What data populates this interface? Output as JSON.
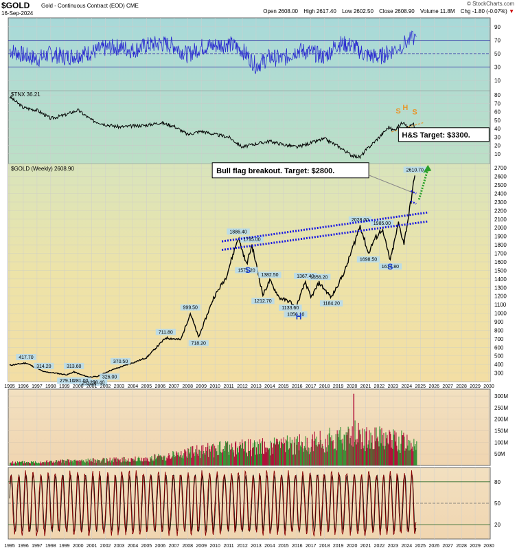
{
  "header": {
    "symbol": "$GOLD",
    "description": "Gold - Continuous Contract (EOD) CME",
    "date": "16-Sep-2024",
    "copyright": "© StockCharts.com",
    "quote": {
      "open_label": "Open",
      "open": "2608.00",
      "high_label": "High",
      "high": "2617.40",
      "low_label": "Low",
      "low": "2602.50",
      "close_label": "Close",
      "close": "2608.90",
      "volume_label": "Volume",
      "volume": "11.8M",
      "chg_label": "Chg",
      "chg": "-1.80 (-0.07%)",
      "chg_arrow": "▼"
    }
  },
  "colors": {
    "rsi_line": "#2a2ad0",
    "price_line": "#000000",
    "tnx_line": "#000000",
    "trend_dots": "#1a1ae0",
    "hs_labels_gold": "#e8952a",
    "hs_labels_price": "#1a3fd0",
    "target_arrow": "#2aa02a",
    "volume_up": "#2f8f2f",
    "volume_down": "#b0103a",
    "stoch_line": "#8b0000",
    "panel_top_bg": "#a8d8d8",
    "panel_bottom_bg": "#f0d8b0"
  },
  "chart_data": [
    {
      "type": "line",
      "panel": "RSI",
      "ylim": [
        0,
        100
      ],
      "yticks": [
        "10",
        "30",
        "50",
        "70",
        "90"
      ],
      "reference_lines": [
        30,
        50,
        70
      ],
      "x": [
        1995,
        1996,
        1997,
        1998,
        1999,
        2000,
        2001,
        2002,
        2003,
        2004,
        2005,
        2006,
        2007,
        2008,
        2009,
        2010,
        2011,
        2012,
        2013,
        2014,
        2015,
        2016,
        2017,
        2018,
        2019,
        2020,
        2021,
        2022,
        2023,
        2024.7
      ],
      "values": [
        55,
        48,
        42,
        50,
        45,
        48,
        52,
        58,
        60,
        55,
        62,
        65,
        62,
        48,
        60,
        62,
        65,
        55,
        32,
        45,
        42,
        55,
        52,
        45,
        65,
        62,
        48,
        45,
        55,
        75
      ]
    },
    {
      "type": "line",
      "panel": "TNX",
      "series_label": "$TNX 36.21",
      "ylim": [
        0,
        85
      ],
      "yticks": [
        "10",
        "20",
        "30",
        "40",
        "50",
        "60",
        "70",
        "80"
      ],
      "x": [
        1995,
        1996,
        1997,
        1998,
        1999,
        2000,
        2001,
        2002,
        2003,
        2004,
        2005,
        2006,
        2007,
        2008,
        2009,
        2010,
        2011,
        2012,
        2013,
        2014,
        2015,
        2016,
        2017,
        2018,
        2019,
        2020,
        2020.6,
        2021,
        2022,
        2022.7,
        2023,
        2023.3,
        2023.8,
        2024,
        2024.5,
        2024.7
      ],
      "values": [
        78,
        65,
        62,
        52,
        56,
        62,
        50,
        45,
        42,
        43,
        44,
        47,
        43,
        33,
        37,
        33,
        30,
        18,
        22,
        25,
        21,
        18,
        23,
        28,
        19,
        8,
        6,
        14,
        30,
        42,
        38,
        41,
        49,
        41,
        45,
        36
      ]
    },
    {
      "type": "line",
      "panel": "Price",
      "series_label": "$GOLD (Weekly) 2608.90",
      "ylim": [
        200,
        2750
      ],
      "yticks": [
        "300",
        "400",
        "500",
        "600",
        "700",
        "800",
        "900",
        "1000",
        "1100",
        "1200",
        "1300",
        "1400",
        "1500",
        "1600",
        "1700",
        "1800",
        "1900",
        "2000",
        "2100",
        "2200",
        "2300",
        "2400",
        "2500",
        "2600",
        "2700"
      ],
      "xticks": [
        "1995",
        "1996",
        "1997",
        "1998",
        "1999",
        "2000",
        "2001",
        "2002",
        "2003",
        "2004",
        "2005",
        "2006",
        "2007",
        "2008",
        "2009",
        "2010",
        "2011",
        "2012",
        "2013",
        "2014",
        "2015",
        "2016",
        "2017",
        "2018",
        "2019",
        "2020",
        "2021",
        "2022",
        "2023",
        "2024",
        "2025",
        "2026",
        "2027",
        "2028",
        "2029",
        "2030"
      ],
      "x": [
        1995,
        1996.2,
        1997.5,
        1998.3,
        1999.2,
        1999.7,
        2000.2,
        2000.8,
        2001.4,
        2002.3,
        2003.1,
        2004,
        2005,
        2006.4,
        2007.5,
        2008.2,
        2008.8,
        2009.9,
        2010.8,
        2011.7,
        2012.3,
        2012.7,
        2013.5,
        2014,
        2014.7,
        2015.5,
        2015.9,
        2016.6,
        2017,
        2017.6,
        2018.5,
        2019.5,
        2020.6,
        2021.2,
        2021.6,
        2022.2,
        2022.8,
        2023.4,
        2023.8,
        2024.1,
        2024.6
      ],
      "values": [
        390,
        417.7,
        314.2,
        300,
        279.1,
        313.6,
        281,
        253.2,
        258.4,
        326,
        370.5,
        420,
        480,
        711.8,
        690,
        999.5,
        718.2,
        1180,
        1420,
        1886.4,
        1571.2,
        1795,
        1212.7,
        1382.5,
        1180,
        1133.6,
        1056.1,
        1367.4,
        1180,
        1356.2,
        1184.2,
        1500,
        2028,
        1698.5,
        1850,
        1985,
        1614.8,
        2050,
        1820,
        2100,
        2610.7
      ],
      "annotations": [
        {
          "text": "417.70",
          "x": 1996.2,
          "y": 417.7
        },
        {
          "text": "314.20",
          "x": 1997.5,
          "y": 314.2
        },
        {
          "text": "279.10",
          "x": 1999.2,
          "y": 279.1
        },
        {
          "text": "313.60",
          "x": 1999.7,
          "y": 313.6
        },
        {
          "text": "281.00",
          "x": 2000.2,
          "y": 281
        },
        {
          "text": "253.20",
          "x": 2000.8,
          "y": 253.2
        },
        {
          "text": "258.40",
          "x": 2001.4,
          "y": 258.4
        },
        {
          "text": "326.00",
          "x": 2002.3,
          "y": 326
        },
        {
          "text": "370.50",
          "x": 2003.1,
          "y": 370.5
        },
        {
          "text": "711.80",
          "x": 2006.4,
          "y": 711.8
        },
        {
          "text": "999.50",
          "x": 2008.2,
          "y": 999.5
        },
        {
          "text": "718.20",
          "x": 2008.8,
          "y": 718.2
        },
        {
          "text": "1886.40",
          "x": 2011.7,
          "y": 1886.4
        },
        {
          "text": "1795.00",
          "x": 2012.7,
          "y": 1795
        },
        {
          "text": "1571.20",
          "x": 2012.3,
          "y": 1571.2
        },
        {
          "text": "1382.50",
          "x": 2014,
          "y": 1382.5
        },
        {
          "text": "1212.70",
          "x": 2013.5,
          "y": 1212.7
        },
        {
          "text": "1367.40",
          "x": 2016.6,
          "y": 1367.4
        },
        {
          "text": "1356.20",
          "x": 2017.6,
          "y": 1356.2
        },
        {
          "text": "1133.60",
          "x": 2015.5,
          "y": 1133.6
        },
        {
          "text": "1056.10",
          "x": 2015.9,
          "y": 1056.1
        },
        {
          "text": "1184.20",
          "x": 2018.5,
          "y": 1184.2
        },
        {
          "text": "2028.00",
          "x": 2020.6,
          "y": 2028
        },
        {
          "text": "1698.50",
          "x": 2021.2,
          "y": 1698.5
        },
        {
          "text": "1985.00",
          "x": 2022.2,
          "y": 1985
        },
        {
          "text": "1614.80",
          "x": 2022.8,
          "y": 1614.8
        },
        {
          "text": "2610.70",
          "x": 2024.6,
          "y": 2610.7
        }
      ],
      "callouts": {
        "flag": "Bull flag breakout.  Target: $2800.",
        "target": "H&S Target: $3300.",
        "s_left": "S",
        "h": "H",
        "s_right": "S",
        "tnx_s_left": "S",
        "tnx_h": "H",
        "tnx_s_right": "S"
      }
    },
    {
      "type": "bar",
      "panel": "Volume",
      "ylim": [
        0,
        330
      ],
      "yticks": [
        "50M",
        "100M",
        "150M",
        "200M",
        "250M",
        "300M"
      ]
    },
    {
      "type": "line",
      "panel": "Stochastic",
      "ylim": [
        0,
        100
      ],
      "yticks": [
        "20",
        "50",
        "80"
      ],
      "reference_lines": [
        20,
        50,
        80
      ]
    }
  ]
}
